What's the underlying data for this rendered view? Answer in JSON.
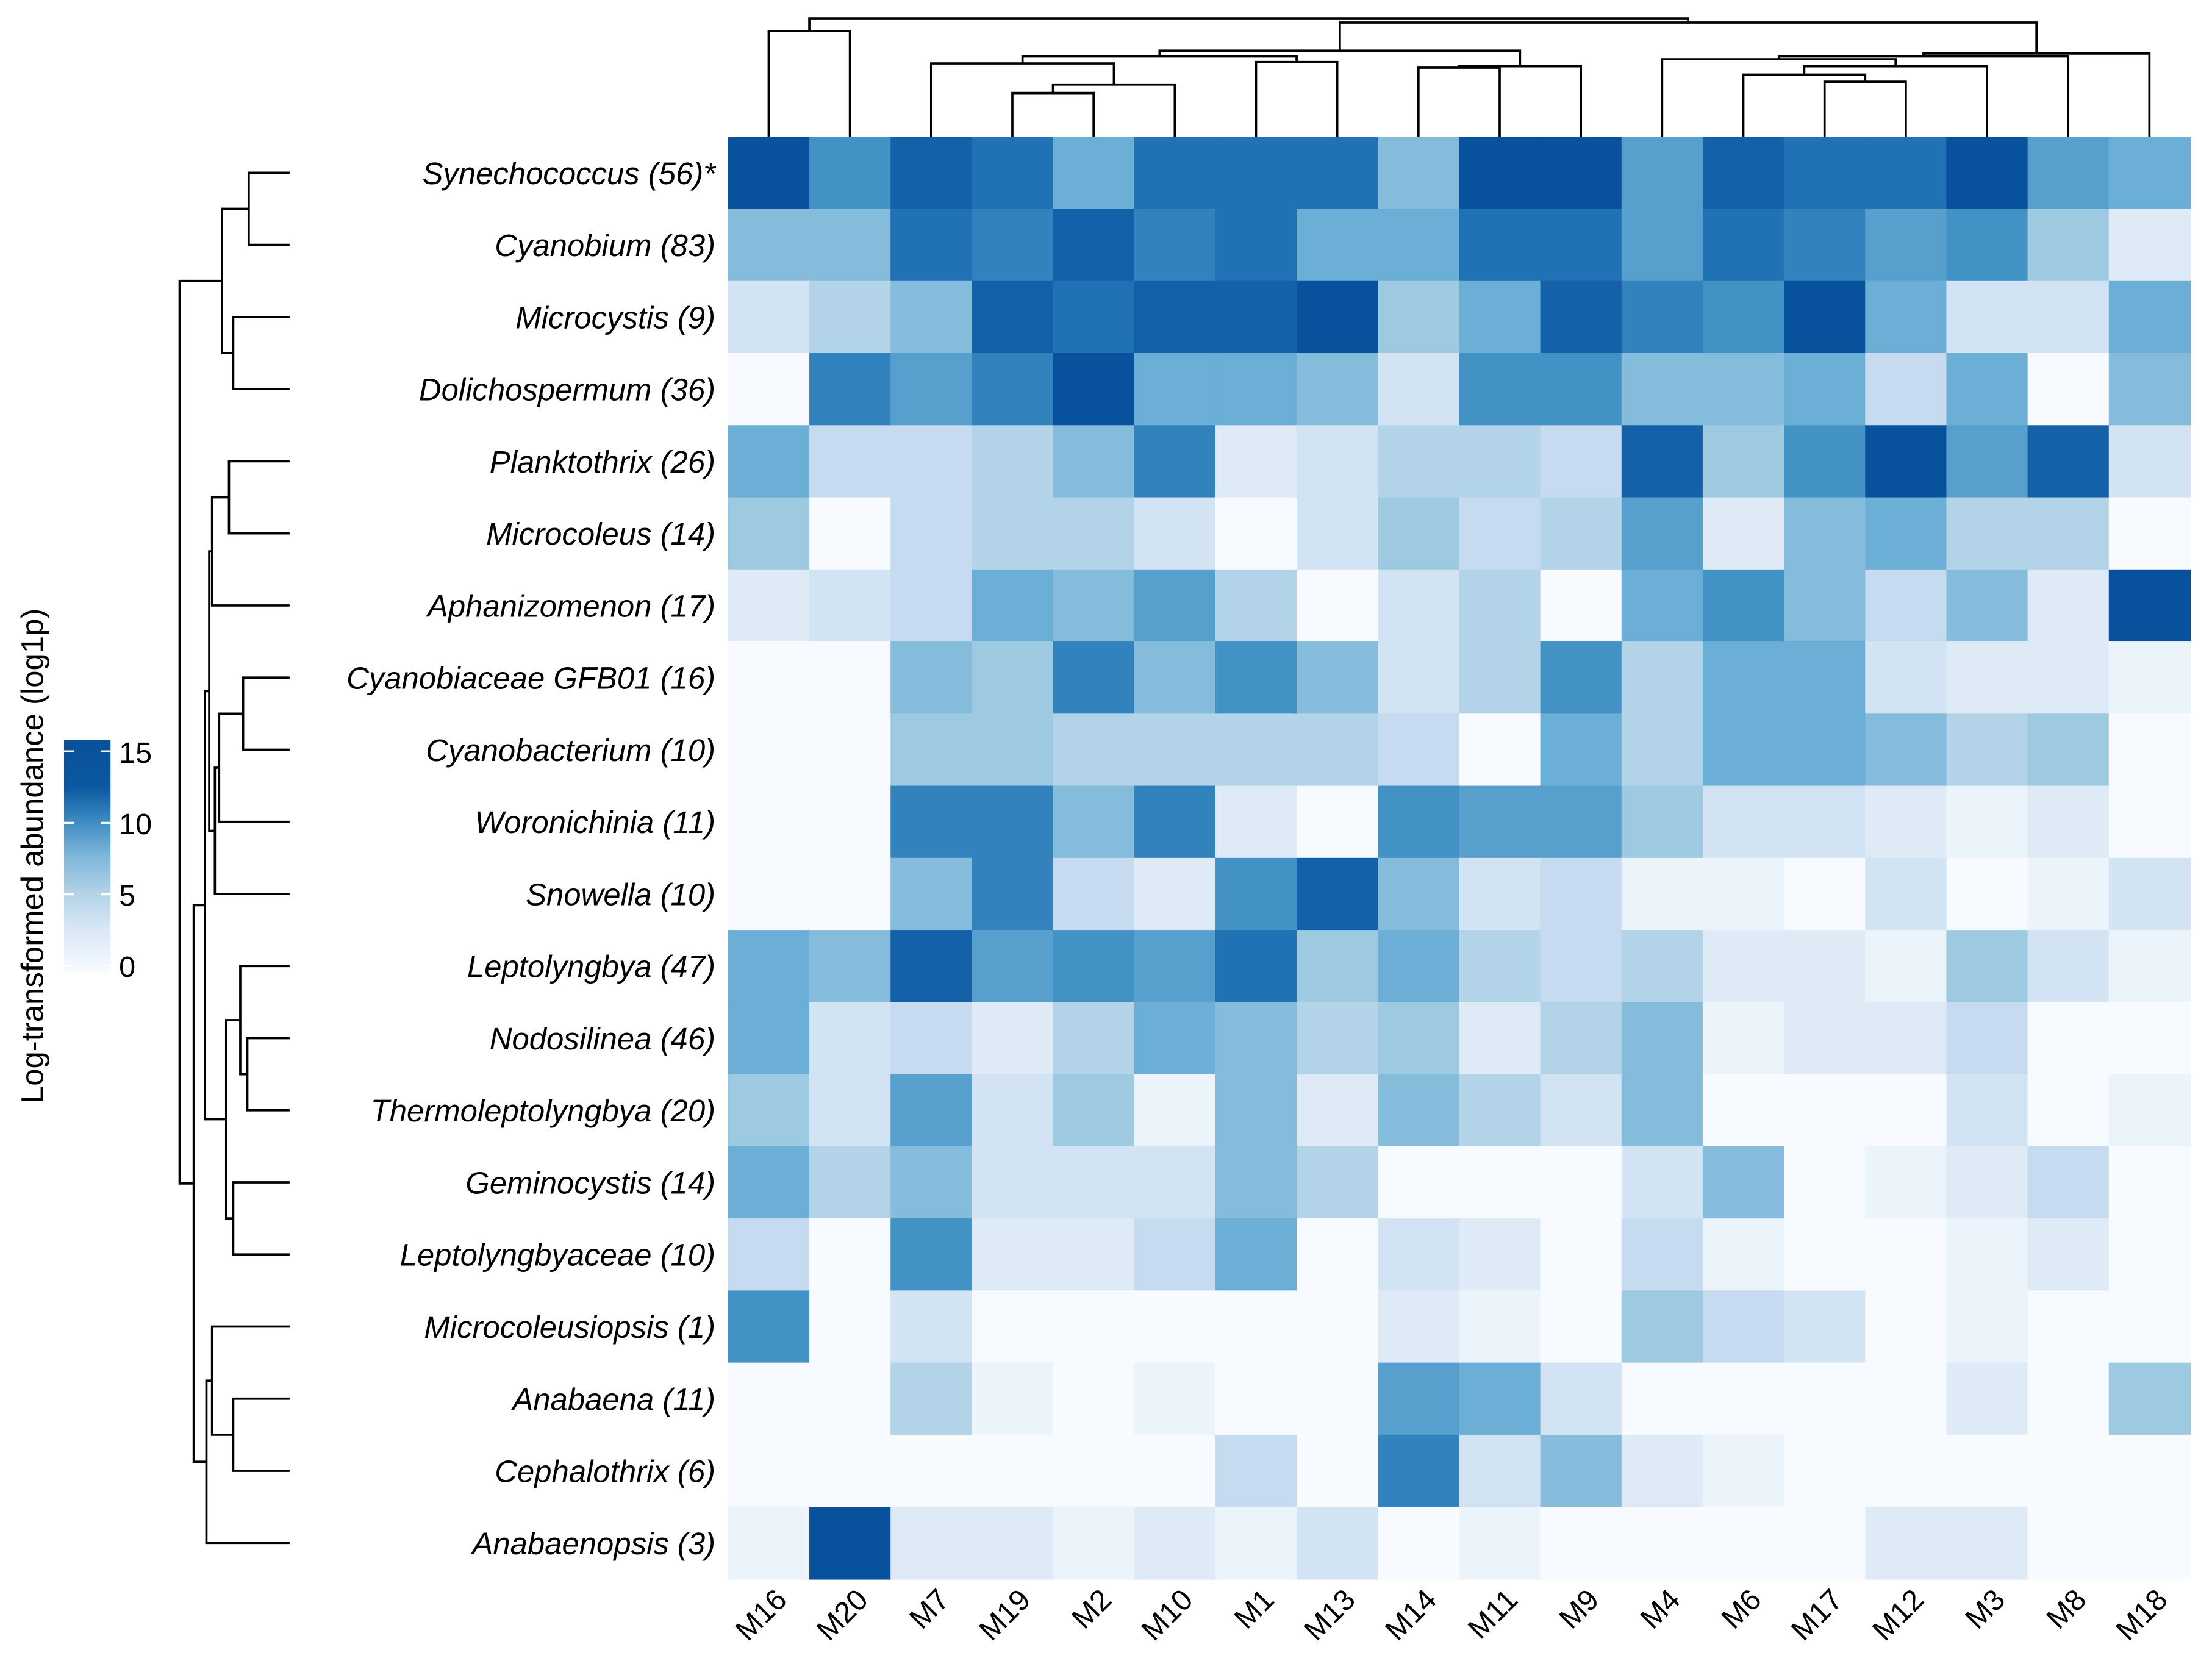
{
  "chart_data": {
    "type": "heatmap",
    "title": "",
    "legend": {
      "title": "Log-transformed abundance (log1p)",
      "ticks": [
        0,
        5,
        10,
        15
      ],
      "range": [
        0,
        15.5
      ],
      "placement": "left"
    },
    "colorscale": [
      "#f7fbff",
      "#deebf7",
      "#c6dbef",
      "#9ecae1",
      "#6baed6",
      "#4292c6",
      "#2171b5",
      "#08519c"
    ],
    "columns": [
      "M16",
      "M20",
      "M7",
      "M19",
      "M2",
      "M10",
      "M1",
      "M13",
      "M14",
      "M11",
      "M9",
      "M4",
      "M6",
      "M17",
      "M12",
      "M3",
      "M8",
      "M18"
    ],
    "rows": [
      "Synechococcus (56)*",
      "Cyanobium (83)",
      "Microcystis (9)",
      "Dolichospermum (36)",
      "Planktothrix (26)",
      "Microcoleus (14)",
      "Aphanizomenon (17)",
      "Cyanobiaceae GFB01 (16)",
      "Cyanobacterium (10)",
      "Woronichinia (11)",
      "Snowella (10)",
      "Leptolyngbya (47)",
      "Nodosilinea (46)",
      "Thermoleptolyngbya (20)",
      "Geminocystis (14)",
      "Leptolyngbyaceae (10)",
      "Microcoleusiopsis (1)",
      "Anabaena (11)",
      "Cephalothrix (6)",
      "Anabaenopsis (3)"
    ],
    "values": [
      [
        14,
        10,
        13,
        12,
        8,
        12,
        12,
        12,
        7,
        14,
        15,
        9,
        13,
        12,
        12,
        14,
        9,
        8
      ],
      [
        7,
        7,
        12,
        11,
        13,
        11,
        12,
        8,
        8,
        12,
        12,
        9,
        12,
        11,
        9,
        10,
        6,
        2
      ],
      [
        3,
        5,
        7,
        13,
        12,
        13,
        13,
        14,
        6,
        8,
        13,
        11,
        10,
        15,
        8,
        3,
        3,
        8
      ],
      [
        0,
        11,
        9,
        11,
        14,
        8,
        8,
        7,
        3,
        10,
        10,
        7,
        7,
        8,
        4,
        8,
        0,
        7
      ],
      [
        8,
        4,
        4,
        5,
        7,
        11,
        2,
        3,
        5,
        5,
        4,
        13,
        6,
        10,
        15,
        9,
        13,
        3
      ],
      [
        6,
        0,
        4,
        5,
        5,
        3,
        0,
        3,
        6,
        4,
        5,
        9,
        2,
        7,
        8,
        5,
        5,
        0
      ],
      [
        2,
        3,
        4,
        8,
        7,
        9,
        5,
        0,
        3,
        5,
        0,
        8,
        10,
        7,
        4,
        7,
        2,
        14
      ],
      [
        0,
        0,
        7,
        6,
        11,
        7,
        10,
        7,
        3,
        5,
        10,
        5,
        8,
        8,
        3,
        2,
        2,
        1
      ],
      [
        0,
        0,
        6,
        6,
        5,
        5,
        5,
        5,
        4,
        0,
        8,
        5,
        8,
        8,
        7,
        5,
        6,
        0
      ],
      [
        0,
        0,
        11,
        11,
        7,
        11,
        2,
        0,
        10,
        9,
        9,
        6,
        3,
        3,
        2,
        1,
        2,
        0
      ],
      [
        0,
        0,
        7,
        11,
        4,
        2,
        10,
        13,
        7,
        3,
        4,
        1,
        1,
        0,
        3,
        0,
        1,
        3
      ],
      [
        8,
        7,
        13,
        9,
        10,
        9,
        12,
        6,
        8,
        5,
        4,
        5,
        2,
        2,
        1,
        6,
        3,
        1
      ],
      [
        8,
        3,
        4,
        2,
        5,
        8,
        7,
        5,
        6,
        2,
        5,
        7,
        1,
        2,
        2,
        4,
        0,
        0
      ],
      [
        6,
        3,
        9,
        3,
        6,
        1,
        7,
        2,
        7,
        5,
        3,
        7,
        0,
        0,
        0,
        3,
        0,
        1
      ],
      [
        8,
        5,
        7,
        3,
        3,
        3,
        7,
        5,
        0,
        0,
        0,
        3,
        7,
        0,
        1,
        2,
        4,
        0
      ],
      [
        4,
        0,
        10,
        2,
        2,
        4,
        8,
        0,
        3,
        2,
        0,
        4,
        1,
        0,
        0,
        1,
        2,
        0
      ],
      [
        10,
        0,
        3,
        0,
        0,
        0,
        0,
        0,
        2,
        1,
        0,
        6,
        4,
        3,
        0,
        1,
        0,
        0
      ],
      [
        0,
        0,
        5,
        1,
        0,
        1,
        0,
        0,
        9,
        8,
        3,
        0,
        0,
        0,
        0,
        2,
        0,
        6
      ],
      [
        0,
        0,
        0,
        0,
        0,
        0,
        4,
        0,
        11,
        3,
        7,
        2,
        1,
        0,
        0,
        0,
        0,
        0
      ],
      [
        1,
        15,
        2,
        2,
        1,
        2,
        1,
        3,
        0,
        1,
        0,
        0,
        0,
        0,
        2,
        2,
        0,
        0
      ]
    ],
    "row_dendrogram": true,
    "column_dendrogram": true
  }
}
